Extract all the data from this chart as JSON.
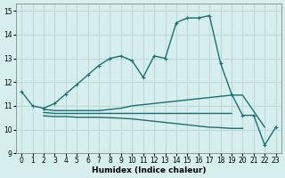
{
  "xlabel": "Humidex (Indice chaleur)",
  "bg_color": "#d6eeee",
  "grid_color": "#c0d8d8",
  "line_color": "#1a7070",
  "xlim": [
    -0.5,
    23.5
  ],
  "ylim": [
    9,
    15.3
  ],
  "yticks": [
    9,
    10,
    11,
    12,
    13,
    14,
    15
  ],
  "xticks": [
    0,
    1,
    2,
    3,
    4,
    5,
    6,
    7,
    8,
    9,
    10,
    11,
    12,
    13,
    14,
    15,
    16,
    17,
    18,
    19,
    20,
    21,
    22,
    23
  ],
  "series": [
    {
      "x": [
        0,
        1,
        2,
        3,
        4,
        5,
        6,
        7,
        8,
        9,
        10,
        11,
        12,
        13,
        14,
        15,
        16,
        17,
        18,
        19,
        20,
        21,
        22,
        23
      ],
      "y": [
        11.6,
        11.0,
        10.9,
        11.1,
        11.5,
        11.9,
        12.3,
        12.7,
        13.0,
        13.1,
        12.9,
        12.2,
        13.1,
        13.0,
        14.5,
        14.7,
        14.7,
        14.8,
        12.8,
        11.5,
        10.6,
        10.6,
        9.35,
        10.1
      ],
      "marker": true,
      "linewidth": 1.0
    },
    {
      "x": [
        2,
        3,
        4,
        5,
        6,
        7,
        8,
        9,
        10,
        11,
        12,
        13,
        14,
        15,
        16,
        17,
        18,
        19,
        20,
        22
      ],
      "y": [
        10.85,
        10.8,
        10.8,
        10.8,
        10.8,
        10.8,
        10.85,
        10.9,
        11.0,
        11.05,
        11.1,
        11.15,
        11.2,
        11.25,
        11.3,
        11.35,
        11.4,
        11.45,
        11.45,
        10.1
      ],
      "marker": false,
      "linewidth": 1.0
    },
    {
      "x": [
        2,
        3,
        4,
        5,
        6,
        7,
        8,
        9,
        10,
        11,
        12,
        13,
        14,
        15,
        16,
        17,
        18,
        19
      ],
      "y": [
        10.72,
        10.68,
        10.68,
        10.68,
        10.68,
        10.68,
        10.68,
        10.68,
        10.68,
        10.68,
        10.68,
        10.68,
        10.68,
        10.68,
        10.68,
        10.68,
        10.68,
        10.68
      ],
      "marker": false,
      "linewidth": 1.0
    },
    {
      "x": [
        2,
        3,
        4,
        5,
        6,
        7,
        8,
        9,
        10,
        11,
        12,
        13,
        14,
        15,
        16,
        17,
        18,
        19,
        20
      ],
      "y": [
        10.58,
        10.55,
        10.55,
        10.52,
        10.52,
        10.52,
        10.5,
        10.48,
        10.45,
        10.4,
        10.35,
        10.3,
        10.25,
        10.2,
        10.15,
        10.1,
        10.08,
        10.05,
        10.05
      ],
      "marker": false,
      "linewidth": 1.0
    }
  ]
}
